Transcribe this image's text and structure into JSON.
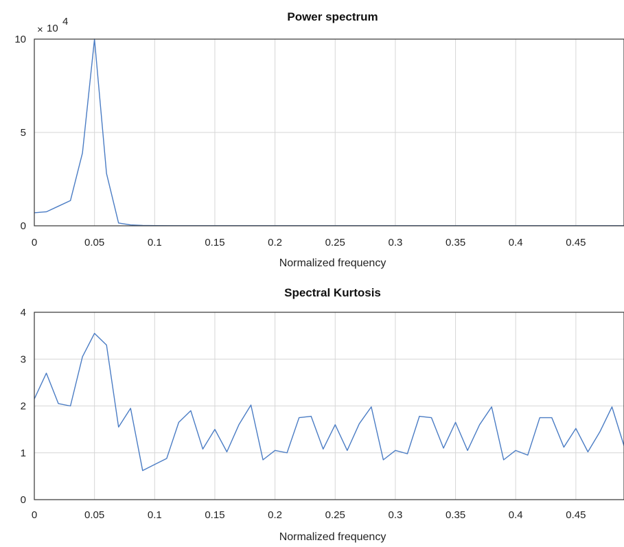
{
  "chart_data": [
    {
      "type": "line",
      "title": "Power spectrum",
      "xlabel": "Normalized frequency",
      "ylabel": "",
      "xlim": [
        0,
        0.49
      ],
      "ylim": [
        0,
        10
      ],
      "y_multiplier": {
        "base": "10",
        "exponent": "4",
        "times": "×"
      },
      "xticks": [
        "0",
        "0.05",
        "0.1",
        "0.15",
        "0.2",
        "0.25",
        "0.3",
        "0.35",
        "0.4",
        "0.45"
      ],
      "xtick_values": [
        0,
        0.05,
        0.1,
        0.15,
        0.2,
        0.25,
        0.3,
        0.35,
        0.4,
        0.45
      ],
      "yticks": [
        "0",
        "5",
        "10"
      ],
      "ytick_values": [
        0,
        5,
        10
      ],
      "grid": true,
      "color": "#4a7cc4",
      "x": [
        0,
        0.01,
        0.02,
        0.03,
        0.04,
        0.05,
        0.06,
        0.07,
        0.08,
        0.09,
        0.1,
        0.12,
        0.15,
        0.2,
        0.25,
        0.3,
        0.35,
        0.4,
        0.45,
        0.49
      ],
      "y": [
        0.7,
        0.75,
        1.05,
        1.35,
        3.9,
        10.0,
        2.8,
        0.15,
        0.05,
        0.02,
        0.01,
        0.005,
        0.005,
        0.005,
        0.005,
        0.005,
        0.005,
        0.005,
        0.005,
        0.005
      ]
    },
    {
      "type": "line",
      "title": "Spectral Kurtosis",
      "xlabel": "Normalized frequency",
      "ylabel": "",
      "xlim": [
        0,
        0.49
      ],
      "ylim": [
        0,
        4
      ],
      "xticks": [
        "0",
        "0.05",
        "0.1",
        "0.15",
        "0.2",
        "0.25",
        "0.3",
        "0.35",
        "0.4",
        "0.45"
      ],
      "xtick_values": [
        0,
        0.05,
        0.1,
        0.15,
        0.2,
        0.25,
        0.3,
        0.35,
        0.4,
        0.45
      ],
      "yticks": [
        "0",
        "1",
        "2",
        "3",
        "4"
      ],
      "ytick_values": [
        0,
        1,
        2,
        3,
        4
      ],
      "grid": true,
      "color": "#4a7cc4",
      "x": [
        0,
        0.01,
        0.02,
        0.03,
        0.04,
        0.05,
        0.06,
        0.07,
        0.08,
        0.09,
        0.1,
        0.11,
        0.12,
        0.13,
        0.14,
        0.15,
        0.16,
        0.17,
        0.18,
        0.19,
        0.2,
        0.21,
        0.22,
        0.23,
        0.24,
        0.25,
        0.26,
        0.27,
        0.28,
        0.29,
        0.3,
        0.31,
        0.32,
        0.33,
        0.34,
        0.35,
        0.36,
        0.37,
        0.38,
        0.39,
        0.4,
        0.41,
        0.42,
        0.43,
        0.44,
        0.45,
        0.46,
        0.47,
        0.48,
        0.49
      ],
      "y": [
        2.15,
        2.7,
        2.05,
        2.0,
        3.05,
        3.55,
        3.3,
        1.55,
        1.95,
        0.62,
        0.75,
        0.88,
        1.65,
        1.9,
        1.08,
        1.5,
        1.02,
        1.6,
        2.02,
        0.85,
        1.05,
        1.0,
        1.75,
        1.78,
        1.08,
        1.6,
        1.05,
        1.62,
        1.98,
        0.85,
        1.05,
        0.98,
        1.78,
        1.75,
        1.1,
        1.65,
        1.05,
        1.6,
        1.98,
        0.85,
        1.05,
        0.95,
        1.75,
        1.75,
        1.12,
        1.52,
        1.02,
        1.45,
        1.98,
        1.15
      ]
    }
  ]
}
